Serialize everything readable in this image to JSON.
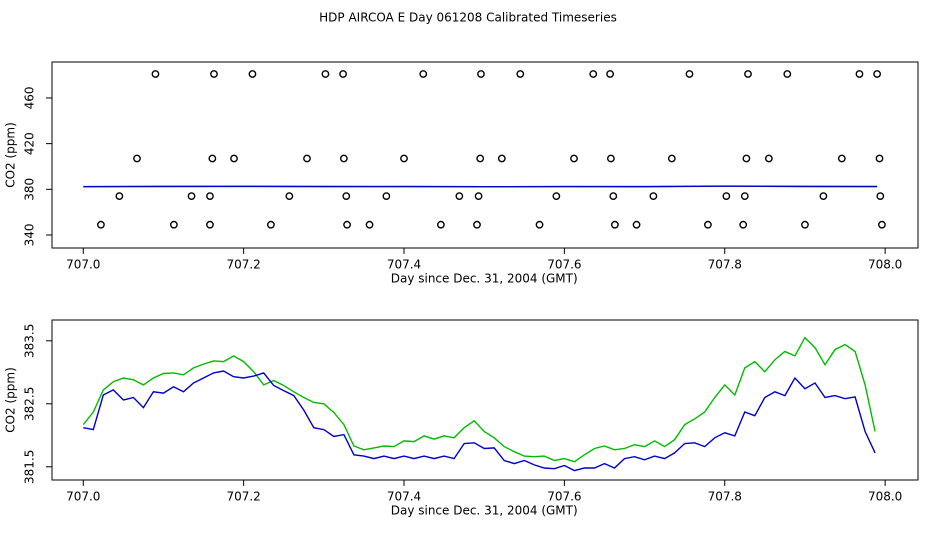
{
  "title": "HDP AIRCOA E  Day 061208  Calibrated Timeseries",
  "chart_data": [
    {
      "type": "scatter",
      "x_label": "Day since Dec. 31, 2004 (GMT)",
      "y_label": "CO2 (ppm)",
      "xlim": [
        706.961,
        708.041
      ],
      "ylim": [
        328.6,
        491.5
      ],
      "xticks": [
        {
          "value": 707,
          "label": "707.0"
        },
        707.2,
        707.4,
        707.6,
        707.8,
        {
          "value": 708,
          "label": "708.0"
        }
      ],
      "yticks": [
        340,
        380,
        420,
        460
      ],
      "x": [
        707.0,
        707.1,
        707.2,
        707.3,
        707.4,
        707.5,
        707.6,
        707.7,
        707.8,
        707.9,
        707.99
      ],
      "series": [
        {
          "type": "scatter",
          "color": "#000000",
          "x": [
            707.09,
            707.163,
            707.211,
            707.302,
            707.324,
            707.424,
            707.496,
            707.545,
            707.636,
            707.657,
            707.756,
            707.829,
            707.878,
            707.968,
            707.99,
            707.067,
            707.161,
            707.188,
            707.279,
            707.325,
            707.4,
            707.495,
            707.522,
            707.612,
            707.658,
            707.734,
            707.827,
            707.855,
            707.946,
            707.993,
            707.045,
            707.135,
            707.158,
            707.257,
            707.328,
            707.378,
            707.469,
            707.493,
            707.59,
            707.661,
            707.711,
            707.802,
            707.825,
            707.923,
            707.994,
            707.022,
            707.113,
            707.158,
            707.234,
            707.329,
            707.357,
            707.446,
            707.491,
            707.569,
            707.663,
            707.69,
            707.779,
            707.823,
            707.9,
            707.996
          ],
          "values": [
            481,
            481,
            481,
            481,
            481,
            481,
            481,
            481,
            481,
            481,
            481,
            481,
            481,
            481,
            481,
            407,
            407,
            407,
            407,
            407,
            407,
            407,
            407,
            407,
            407,
            407,
            407,
            407,
            407,
            407,
            374,
            374,
            374,
            374,
            374,
            374,
            374,
            374,
            374,
            374,
            374,
            374,
            374,
            374,
            374,
            349,
            349,
            349,
            349,
            349,
            349,
            349,
            349,
            349,
            349,
            349,
            349,
            349,
            349,
            349
          ]
        },
        {
          "type": "line",
          "color": "#00bb00",
          "values": [
            382.4,
            382.6,
            382.5,
            382.4,
            382.5,
            382.3,
            382.4,
            382.5,
            382.8,
            382.6,
            382.5
          ]
        },
        {
          "type": "line",
          "color": "#0000cc",
          "values": [
            382.3,
            382.5,
            382.6,
            382.5,
            382.4,
            382.3,
            382.4,
            382.3,
            382.7,
            382.5,
            382.4
          ]
        }
      ]
    },
    {
      "type": "line",
      "x_label": "Day since Dec. 31, 2004 (GMT)",
      "y_label": "CO2 (ppm)",
      "xlim": [
        706.961,
        708.041
      ],
      "ylim": [
        381.29,
        383.83
      ],
      "xticks": [
        {
          "value": 707,
          "label": "707.0"
        },
        707.2,
        707.4,
        707.6,
        707.8,
        {
          "value": 708,
          "label": "708.0"
        }
      ],
      "yticks": [
        381.5,
        382.5,
        383.5
      ],
      "x": [
        707.0,
        707.0125,
        707.025,
        707.0375,
        707.05,
        707.0625,
        707.075,
        707.0875,
        707.1,
        707.1125,
        707.125,
        707.1375,
        707.15,
        707.1625,
        707.175,
        707.1875,
        707.2,
        707.2125,
        707.225,
        707.2375,
        707.25,
        707.2625,
        707.275,
        707.2875,
        707.3,
        707.3125,
        707.325,
        707.3375,
        707.35,
        707.3625,
        707.375,
        707.3875,
        707.4,
        707.4125,
        707.425,
        707.4375,
        707.45,
        707.4625,
        707.475,
        707.4875,
        707.5,
        707.5125,
        707.525,
        707.5375,
        707.55,
        707.5625,
        707.575,
        707.5875,
        707.6,
        707.6125,
        707.625,
        707.6375,
        707.65,
        707.6625,
        707.675,
        707.6875,
        707.7,
        707.7125,
        707.725,
        707.7375,
        707.75,
        707.7625,
        707.775,
        707.7875,
        707.8,
        707.8125,
        707.825,
        707.8375,
        707.85,
        707.8625,
        707.875,
        707.8875,
        707.9,
        707.9125,
        707.925,
        707.9375,
        707.95,
        707.9625,
        707.975,
        707.9875
      ],
      "series": [
        {
          "color": "#00bb00",
          "values": [
            382.17,
            382.37,
            382.72,
            382.85,
            382.91,
            382.88,
            382.8,
            382.91,
            382.98,
            382.99,
            382.96,
            383.07,
            383.13,
            383.18,
            383.17,
            383.26,
            383.17,
            383.01,
            382.8,
            382.87,
            382.79,
            382.69,
            382.6,
            382.52,
            382.5,
            382.36,
            382.17,
            381.83,
            381.77,
            381.8,
            381.83,
            381.82,
            381.91,
            381.9,
            381.99,
            381.94,
            381.99,
            381.96,
            382.12,
            382.23,
            382.06,
            381.96,
            381.82,
            381.74,
            381.67,
            381.66,
            381.67,
            381.6,
            381.63,
            381.58,
            381.69,
            381.79,
            381.83,
            381.77,
            381.79,
            381.85,
            381.82,
            381.91,
            381.82,
            381.93,
            382.17,
            382.26,
            382.37,
            382.6,
            382.8,
            382.64,
            383.07,
            383.17,
            383.01,
            383.2,
            383.33,
            383.26,
            383.55,
            383.39,
            383.12,
            383.36,
            383.44,
            383.33,
            382.8,
            382.06
          ]
        },
        {
          "color": "#0000cc",
          "values": [
            382.12,
            382.09,
            382.64,
            382.72,
            382.56,
            382.6,
            382.44,
            382.69,
            382.67,
            382.77,
            382.69,
            382.83,
            382.91,
            382.99,
            383.02,
            382.93,
            382.91,
            382.94,
            382.99,
            382.79,
            382.71,
            382.63,
            382.4,
            382.12,
            382.09,
            381.98,
            382.01,
            381.69,
            381.67,
            381.63,
            381.67,
            381.63,
            381.67,
            381.63,
            381.67,
            381.63,
            381.67,
            381.63,
            381.87,
            381.88,
            381.79,
            381.8,
            381.6,
            381.55,
            381.6,
            381.53,
            381.48,
            381.47,
            381.52,
            381.44,
            381.48,
            381.48,
            381.55,
            381.48,
            381.63,
            381.66,
            381.61,
            381.67,
            381.63,
            381.72,
            381.87,
            381.88,
            381.82,
            381.96,
            382.04,
            381.99,
            382.37,
            382.31,
            382.6,
            382.69,
            382.63,
            382.91,
            382.74,
            382.83,
            382.6,
            382.63,
            382.58,
            382.61,
            382.06,
            381.72
          ]
        }
      ]
    }
  ]
}
